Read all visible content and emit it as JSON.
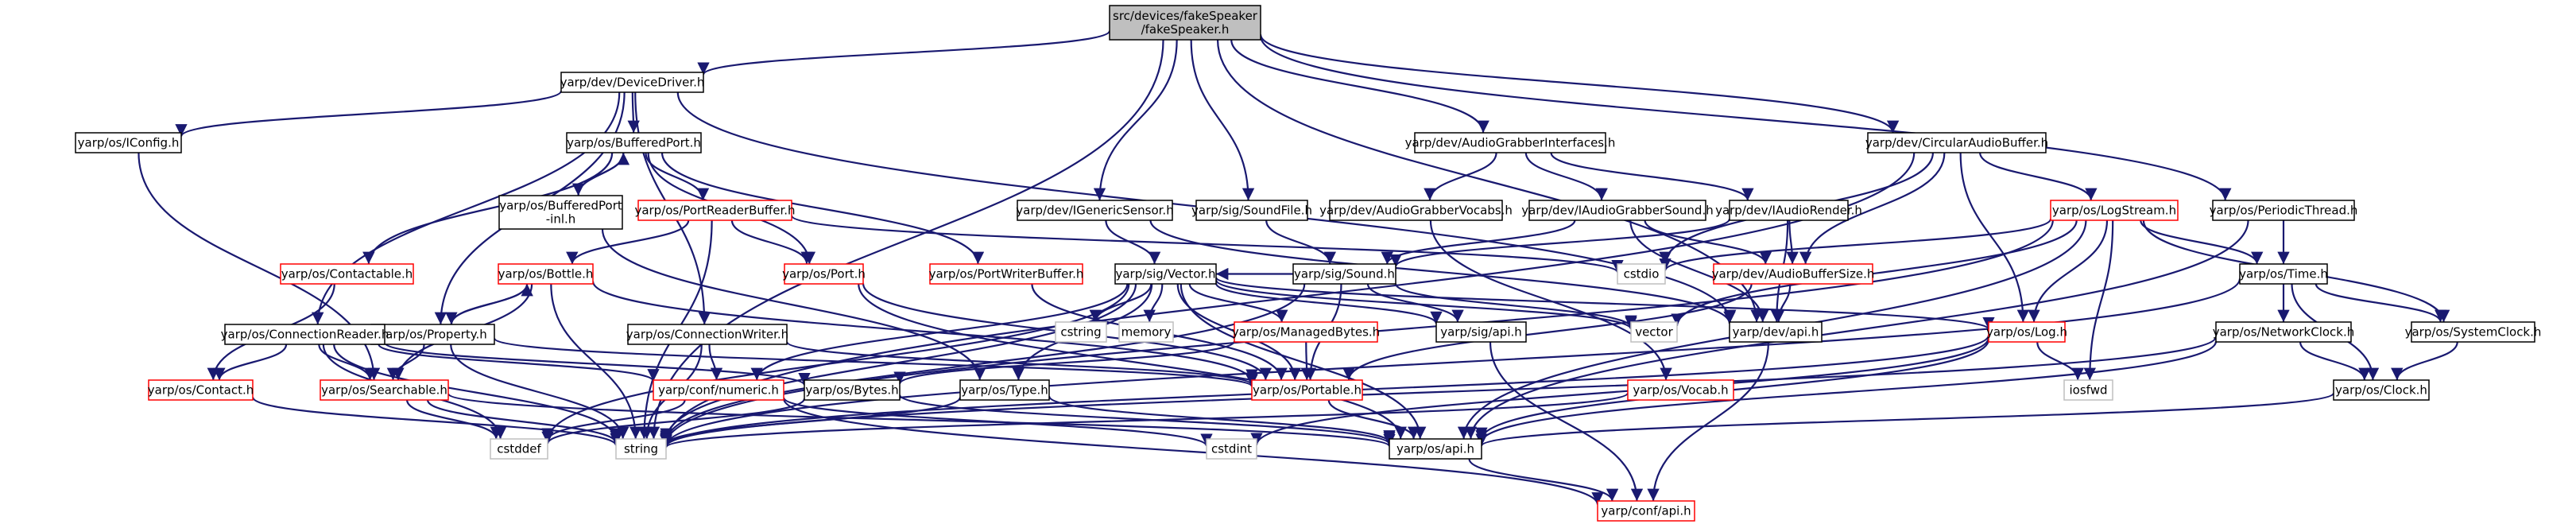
{
  "colors": {
    "edge": "#191970",
    "border_normal": "#000000",
    "border_red": "#ff0000",
    "border_gray": "#bfbfbf",
    "root_fill": "#bfbfbf",
    "fill": "#ffffff"
  },
  "nodes": [
    {
      "id": "root",
      "label": [
        "src/devices/fakeSpeaker",
        "/fakeSpeaker.h"
      ],
      "kind": "root"
    },
    {
      "id": "devicedriver",
      "label": [
        "yarp/dev/DeviceDriver.h"
      ],
      "kind": "normal"
    },
    {
      "id": "iconfig",
      "label": [
        "yarp/os/IConfig.h"
      ],
      "kind": "normal"
    },
    {
      "id": "bufferedport",
      "label": [
        "yarp/os/BufferedPort.h"
      ],
      "kind": "normal"
    },
    {
      "id": "bufferedportinl",
      "label": [
        "yarp/os/BufferedPort",
        "-inl.h"
      ],
      "kind": "normal"
    },
    {
      "id": "portreaderbuffer",
      "label": [
        "yarp/os/PortReaderBuffer.h"
      ],
      "kind": "red"
    },
    {
      "id": "contactable",
      "label": [
        "yarp/os/Contactable.h"
      ],
      "kind": "red"
    },
    {
      "id": "bottle",
      "label": [
        "yarp/os/Bottle.h"
      ],
      "kind": "red"
    },
    {
      "id": "port",
      "label": [
        "yarp/os/Port.h"
      ],
      "kind": "red"
    },
    {
      "id": "portwriterbuffer",
      "label": [
        "yarp/os/PortWriterBuffer.h"
      ],
      "kind": "red"
    },
    {
      "id": "property",
      "label": [
        "yarp/os/Property.h"
      ],
      "kind": "normal"
    },
    {
      "id": "connectionreader",
      "label": [
        "yarp/os/ConnectionReader.h"
      ],
      "kind": "normal"
    },
    {
      "id": "contact",
      "label": [
        "yarp/os/Contact.h"
      ],
      "kind": "red"
    },
    {
      "id": "searchable",
      "label": [
        "yarp/os/Searchable.h"
      ],
      "kind": "red"
    },
    {
      "id": "igenericsensor",
      "label": [
        "yarp/dev/IGenericSensor.h"
      ],
      "kind": "normal"
    },
    {
      "id": "vector",
      "label": [
        "yarp/sig/Vector.h"
      ],
      "kind": "normal"
    },
    {
      "id": "cstring",
      "label": [
        "cstring"
      ],
      "kind": "gray"
    },
    {
      "id": "memory",
      "label": [
        "memory"
      ],
      "kind": "gray"
    },
    {
      "id": "managedbytes",
      "label": [
        "yarp/os/ManagedBytes.h"
      ],
      "kind": "red"
    },
    {
      "id": "connectionwriter",
      "label": [
        "yarp/os/ConnectionWriter.h"
      ],
      "kind": "normal"
    },
    {
      "id": "numeric",
      "label": [
        "yarp/conf/numeric.h"
      ],
      "kind": "red"
    },
    {
      "id": "bytes",
      "label": [
        "yarp/os/Bytes.h"
      ],
      "kind": "normal"
    },
    {
      "id": "type",
      "label": [
        "yarp/os/Type.h"
      ],
      "kind": "normal"
    },
    {
      "id": "portable",
      "label": [
        "yarp/os/Portable.h"
      ],
      "kind": "red"
    },
    {
      "id": "soundfile",
      "label": [
        "yarp/sig/SoundFile.h"
      ],
      "kind": "normal"
    },
    {
      "id": "sound",
      "label": [
        "yarp/sig/Sound.h"
      ],
      "kind": "normal"
    },
    {
      "id": "sigapi",
      "label": [
        "yarp/sig/api.h"
      ],
      "kind": "normal"
    },
    {
      "id": "audiograbberinterfaces",
      "label": [
        "yarp/dev/AudioGrabberInterfaces.h"
      ],
      "kind": "normal"
    },
    {
      "id": "audiograbbervocabs",
      "label": [
        "yarp/dev/AudioGrabberVocabs.h"
      ],
      "kind": "normal"
    },
    {
      "id": "iaudiograbbersound",
      "label": [
        "yarp/dev/IAudioGrabberSound.h"
      ],
      "kind": "normal"
    },
    {
      "id": "iaudiorender",
      "label": [
        "yarp/dev/IAudioRender.h"
      ],
      "kind": "normal"
    },
    {
      "id": "vocab",
      "label": [
        "yarp/os/Vocab.h"
      ],
      "kind": "red"
    },
    {
      "id": "circularaudiobuffer",
      "label": [
        "yarp/dev/CircularAudioBuffer.h"
      ],
      "kind": "normal"
    },
    {
      "id": "logstream",
      "label": [
        "yarp/os/LogStream.h"
      ],
      "kind": "red"
    },
    {
      "id": "audiobuffersize",
      "label": [
        "yarp/dev/AudioBufferSize.h"
      ],
      "kind": "red"
    },
    {
      "id": "devapi",
      "label": [
        "yarp/dev/api.h"
      ],
      "kind": "normal"
    },
    {
      "id": "stdvector",
      "label": [
        "vector"
      ],
      "kind": "gray"
    },
    {
      "id": "cstdio",
      "label": [
        "cstdio"
      ],
      "kind": "gray"
    },
    {
      "id": "log",
      "label": [
        "yarp/os/Log.h"
      ],
      "kind": "red"
    },
    {
      "id": "iosfwd",
      "label": [
        "iosfwd"
      ],
      "kind": "gray"
    },
    {
      "id": "periodicthread",
      "label": [
        "yarp/os/PeriodicThread.h"
      ],
      "kind": "normal"
    },
    {
      "id": "time",
      "label": [
        "yarp/os/Time.h"
      ],
      "kind": "normal"
    },
    {
      "id": "networkclock",
      "label": [
        "yarp/os/NetworkClock.h"
      ],
      "kind": "normal"
    },
    {
      "id": "systemclock",
      "label": [
        "yarp/os/SystemClock.h"
      ],
      "kind": "normal"
    },
    {
      "id": "clock",
      "label": [
        "yarp/os/Clock.h"
      ],
      "kind": "normal"
    },
    {
      "id": "osapi",
      "label": [
        "yarp/os/api.h"
      ],
      "kind": "normal"
    },
    {
      "id": "cstdint",
      "label": [
        "cstdint"
      ],
      "kind": "gray"
    },
    {
      "id": "string",
      "label": [
        "string"
      ],
      "kind": "gray"
    },
    {
      "id": "cstddef",
      "label": [
        "cstddef"
      ],
      "kind": "gray"
    },
    {
      "id": "confapi",
      "label": [
        "yarp/conf/api.h"
      ],
      "kind": "red"
    }
  ],
  "edges": [
    [
      "root",
      "devicedriver"
    ],
    [
      "root",
      "igenericsensor"
    ],
    [
      "root",
      "soundfile"
    ],
    [
      "root",
      "audiograbberinterfaces"
    ],
    [
      "root",
      "circularaudiobuffer"
    ],
    [
      "root",
      "periodicthread"
    ],
    [
      "root",
      "string"
    ],
    [
      "root",
      "devapi"
    ],
    [
      "devicedriver",
      "iconfig"
    ],
    [
      "devicedriver",
      "bufferedport"
    ],
    [
      "devicedriver",
      "property"
    ],
    [
      "devicedriver",
      "connectionreader"
    ],
    [
      "devicedriver",
      "connectionwriter"
    ],
    [
      "devicedriver",
      "devapi"
    ],
    [
      "iconfig",
      "searchable"
    ],
    [
      "bufferedport",
      "bufferedportinl"
    ],
    [
      "bufferedport",
      "portreaderbuffer"
    ],
    [
      "bufferedport",
      "port"
    ],
    [
      "bufferedport",
      "portwriterbuffer"
    ],
    [
      "bufferedport",
      "contactable"
    ],
    [
      "bufferedportinl",
      "bufferedport"
    ],
    [
      "bufferedportinl",
      "type"
    ],
    [
      "portreaderbuffer",
      "bottle"
    ],
    [
      "portreaderbuffer",
      "port"
    ],
    [
      "portreaderbuffer",
      "cstdio"
    ],
    [
      "portreaderbuffer",
      "string"
    ],
    [
      "contactable",
      "contact"
    ],
    [
      "bottle",
      "property"
    ],
    [
      "bottle",
      "searchable"
    ],
    [
      "bottle",
      "string"
    ],
    [
      "bottle",
      "portable"
    ],
    [
      "property",
      "bottle"
    ],
    [
      "property",
      "searchable"
    ],
    [
      "property",
      "portable"
    ],
    [
      "property",
      "string"
    ],
    [
      "port",
      "portable"
    ],
    [
      "port",
      "osapi"
    ],
    [
      "portwriterbuffer",
      "portable"
    ],
    [
      "connectionreader",
      "contact"
    ],
    [
      "connectionreader",
      "searchable"
    ],
    [
      "connectionreader",
      "numeric"
    ],
    [
      "connectionreader",
      "bytes"
    ],
    [
      "connectionreader",
      "string"
    ],
    [
      "connectionreader",
      "cstddef"
    ],
    [
      "contact",
      "string"
    ],
    [
      "searchable",
      "string"
    ],
    [
      "searchable",
      "cstddef"
    ],
    [
      "searchable",
      "osapi"
    ],
    [
      "igenericsensor",
      "vector"
    ],
    [
      "igenericsensor",
      "devapi"
    ],
    [
      "vector",
      "cstring"
    ],
    [
      "vector",
      "memory"
    ],
    [
      "vector",
      "managedbytes"
    ],
    [
      "vector",
      "numeric"
    ],
    [
      "vector",
      "portable"
    ],
    [
      "vector",
      "sigapi"
    ],
    [
      "vector",
      "stdvector"
    ],
    [
      "vector",
      "string"
    ],
    [
      "vector",
      "type"
    ],
    [
      "vector",
      "cstddef"
    ],
    [
      "vector",
      "log"
    ],
    [
      "vector",
      "osapi"
    ],
    [
      "managedbytes",
      "bytes"
    ],
    [
      "managedbytes",
      "portable"
    ],
    [
      "connectionwriter",
      "numeric"
    ],
    [
      "connectionwriter",
      "portable"
    ],
    [
      "connectionwriter",
      "string"
    ],
    [
      "numeric",
      "cstddef"
    ],
    [
      "numeric",
      "cstdint"
    ],
    [
      "numeric",
      "confapi"
    ],
    [
      "bytes",
      "cstddef"
    ],
    [
      "bytes",
      "osapi"
    ],
    [
      "type",
      "string"
    ],
    [
      "type",
      "osapi"
    ],
    [
      "portable",
      "osapi"
    ],
    [
      "soundfile",
      "sound"
    ],
    [
      "sound",
      "vector"
    ],
    [
      "sound",
      "sigapi"
    ],
    [
      "sound",
      "stdvector"
    ],
    [
      "sound",
      "string"
    ],
    [
      "sound",
      "portable"
    ],
    [
      "sigapi",
      "confapi"
    ],
    [
      "audiograbberinterfaces",
      "audiograbbervocabs"
    ],
    [
      "audiograbberinterfaces",
      "iaudiograbbersound"
    ],
    [
      "audiograbberinterfaces",
      "iaudiorender"
    ],
    [
      "audiograbbervocabs",
      "vocab"
    ],
    [
      "iaudiograbbersound",
      "sound"
    ],
    [
      "iaudiograbbersound",
      "audiobuffersize"
    ],
    [
      "iaudiograbbersound",
      "devapi"
    ],
    [
      "iaudiorender",
      "sound"
    ],
    [
      "iaudiorender",
      "audiobuffersize"
    ],
    [
      "iaudiorender",
      "devapi"
    ],
    [
      "vocab",
      "string"
    ],
    [
      "circularaudiobuffer",
      "logstream"
    ],
    [
      "circularaudiobuffer",
      "audiobuffersize"
    ],
    [
      "circularaudiobuffer",
      "cstdio"
    ],
    [
      "circularaudiobuffer",
      "log"
    ],
    [
      "circularaudiobuffer",
      "string"
    ],
    [
      "logstream",
      "log"
    ],
    [
      "logstream",
      "cstdio"
    ],
    [
      "logstream",
      "iosfwd"
    ],
    [
      "logstream",
      "time"
    ],
    [
      "logstream",
      "systemclock"
    ],
    [
      "logstream",
      "stdvector"
    ],
    [
      "logstream",
      "osapi"
    ],
    [
      "logstream",
      "string"
    ],
    [
      "audiobuffersize",
      "devapi"
    ],
    [
      "audiobuffersize",
      "portable"
    ],
    [
      "devapi",
      "confapi"
    ],
    [
      "log",
      "osapi"
    ],
    [
      "log",
      "iosfwd"
    ],
    [
      "log",
      "cstdint"
    ],
    [
      "log",
      "string"
    ],
    [
      "periodicthread",
      "time"
    ],
    [
      "periodicthread",
      "osapi"
    ],
    [
      "time",
      "networkclock"
    ],
    [
      "time",
      "systemclock"
    ],
    [
      "time",
      "clock"
    ],
    [
      "time",
      "string"
    ],
    [
      "networkclock",
      "clock"
    ],
    [
      "networkclock",
      "osapi"
    ],
    [
      "networkclock",
      "string"
    ],
    [
      "systemclock",
      "clock"
    ],
    [
      "clock",
      "osapi"
    ],
    [
      "osapi",
      "confapi"
    ]
  ]
}
